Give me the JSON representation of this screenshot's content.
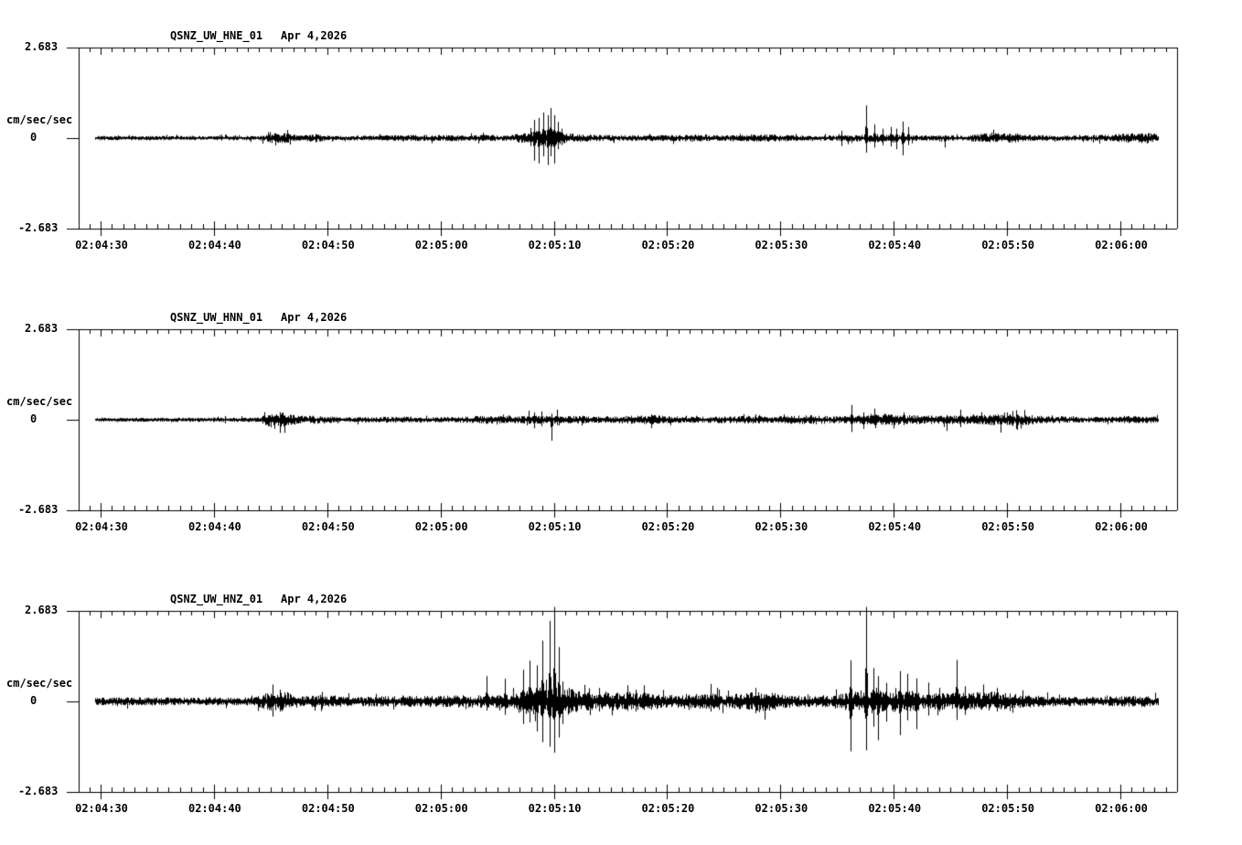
{
  "display": {
    "background": "#ffffff",
    "trace_color": "#000000",
    "text_color": "#000000"
  },
  "chart_data": [
    {
      "type": "line",
      "kind": "seismogram-waveform",
      "station": "QSNZ_UW_HNE_01",
      "date": "Apr 4,2026",
      "ylabel": "cm/sec/sec",
      "ylim": [
        -2.683,
        2.683
      ],
      "ytick_labels": [
        "2.683",
        "0",
        "-2.683"
      ],
      "xtick_seconds": [
        0,
        10,
        20,
        30,
        40,
        50,
        60,
        70,
        80,
        90
      ],
      "xtick_labels": [
        "02:04:30",
        "02:04:40",
        "02:04:50",
        "02:05:00",
        "02:05:10",
        "02:05:20",
        "02:05:30",
        "02:05:40",
        "02:05:50",
        "02:06:00"
      ],
      "grid": false,
      "trace_span_s": [
        -0.5,
        93.3
      ],
      "noise_envelope": [
        [
          -0.5,
          0.045
        ],
        [
          10,
          0.045
        ],
        [
          14,
          0.05
        ],
        [
          15,
          0.11
        ],
        [
          16.5,
          0.11
        ],
        [
          17.5,
          0.055
        ],
        [
          18.8,
          0.09
        ],
        [
          19.8,
          0.06
        ],
        [
          21,
          0.05
        ],
        [
          25,
          0.055
        ],
        [
          27,
          0.07
        ],
        [
          31,
          0.065
        ],
        [
          34,
          0.07
        ],
        [
          36,
          0.06
        ],
        [
          37.4,
          0.12
        ],
        [
          39.5,
          0.2
        ],
        [
          40.8,
          0.12
        ],
        [
          42,
          0.08
        ],
        [
          45,
          0.065
        ],
        [
          48,
          0.06
        ],
        [
          51,
          0.07
        ],
        [
          53,
          0.085
        ],
        [
          55,
          0.06
        ],
        [
          57,
          0.07
        ],
        [
          58.5,
          0.09
        ],
        [
          60,
          0.07
        ],
        [
          63,
          0.055
        ],
        [
          65,
          0.06
        ],
        [
          66.5,
          0.08
        ],
        [
          68,
          0.09
        ],
        [
          71,
          0.08
        ],
        [
          73,
          0.06
        ],
        [
          76,
          0.055
        ],
        [
          78,
          0.1
        ],
        [
          80,
          0.11
        ],
        [
          82,
          0.065
        ],
        [
          85,
          0.055
        ],
        [
          87,
          0.065
        ],
        [
          89,
          0.07
        ],
        [
          90.5,
          0.1
        ],
        [
          92.5,
          0.12
        ],
        [
          93.3,
          0.09
        ]
      ],
      "spikes": [
        [
          15.4,
          0.14,
          0.22
        ],
        [
          19.0,
          0.12,
          0.12
        ],
        [
          37.9,
          0.3,
          0.24
        ],
        [
          38.3,
          0.54,
          0.67
        ],
        [
          38.7,
          0.6,
          0.75
        ],
        [
          39.1,
          0.76,
          0.54
        ],
        [
          39.45,
          0.68,
          0.8
        ],
        [
          39.7,
          0.89,
          0.54
        ],
        [
          40.0,
          0.68,
          0.75
        ],
        [
          40.35,
          0.48,
          0.33
        ],
        [
          40.7,
          0.28,
          0.21
        ],
        [
          65.4,
          0.22,
          0.24
        ],
        [
          67.55,
          0.97,
          0.43
        ],
        [
          68.3,
          0.41,
          0.28
        ],
        [
          69.0,
          0.28,
          0.21
        ],
        [
          69.7,
          0.33,
          0.25
        ],
        [
          70.2,
          0.28,
          0.33
        ],
        [
          70.75,
          0.49,
          0.51
        ],
        [
          71.3,
          0.33,
          0.21
        ],
        [
          74.5,
          0.08,
          0.28
        ]
      ]
    },
    {
      "type": "line",
      "kind": "seismogram-waveform",
      "station": "QSNZ_UW_HNN_01",
      "date": "Apr 4,2026",
      "ylabel": "cm/sec/sec",
      "ylim": [
        -2.683,
        2.683
      ],
      "ytick_labels": [
        "2.683",
        "0",
        "-2.683"
      ],
      "xtick_seconds": [
        0,
        10,
        20,
        30,
        40,
        50,
        60,
        70,
        80,
        90
      ],
      "xtick_labels": [
        "02:04:30",
        "02:04:40",
        "02:04:50",
        "02:05:00",
        "02:05:10",
        "02:05:20",
        "02:05:30",
        "02:05:40",
        "02:05:50",
        "02:06:00"
      ],
      "grid": false,
      "trace_span_s": [
        -0.5,
        93.3
      ],
      "noise_envelope": [
        [
          -0.5,
          0.04
        ],
        [
          10,
          0.045
        ],
        [
          14,
          0.05
        ],
        [
          14.8,
          0.16
        ],
        [
          16.3,
          0.16
        ],
        [
          17.5,
          0.08
        ],
        [
          18.8,
          0.09
        ],
        [
          20,
          0.07
        ],
        [
          21.5,
          0.055
        ],
        [
          24,
          0.06
        ],
        [
          26.5,
          0.07
        ],
        [
          29,
          0.055
        ],
        [
          32,
          0.065
        ],
        [
          33.5,
          0.085
        ],
        [
          36,
          0.08
        ],
        [
          38,
          0.085
        ],
        [
          40,
          0.08
        ],
        [
          42.5,
          0.085
        ],
        [
          44,
          0.07
        ],
        [
          47.5,
          0.09
        ],
        [
          49,
          0.1
        ],
        [
          50.5,
          0.075
        ],
        [
          53,
          0.065
        ],
        [
          55.5,
          0.08
        ],
        [
          57.5,
          0.085
        ],
        [
          59,
          0.07
        ],
        [
          61.5,
          0.09
        ],
        [
          63,
          0.1
        ],
        [
          64.5,
          0.075
        ],
        [
          66,
          0.08
        ],
        [
          67.5,
          0.1
        ],
        [
          69.5,
          0.12
        ],
        [
          71.5,
          0.1
        ],
        [
          73,
          0.09
        ],
        [
          74.5,
          0.1
        ],
        [
          76.5,
          0.09
        ],
        [
          78,
          0.11
        ],
        [
          80,
          0.13
        ],
        [
          81.5,
          0.12
        ],
        [
          83,
          0.085
        ],
        [
          85,
          0.065
        ],
        [
          87,
          0.06
        ],
        [
          89,
          0.065
        ],
        [
          91,
          0.08
        ],
        [
          92.5,
          0.075
        ],
        [
          93.3,
          0.06
        ]
      ],
      "spikes": [
        [
          15.3,
          0.12,
          0.27
        ],
        [
          37.8,
          0.27,
          0.12
        ],
        [
          38.3,
          0.22,
          0.25
        ],
        [
          38.9,
          0.25,
          0.19
        ],
        [
          39.8,
          0.18,
          0.62
        ],
        [
          40.3,
          0.3,
          0.16
        ],
        [
          48.6,
          0.16,
          0.25
        ],
        [
          66.3,
          0.44,
          0.36
        ],
        [
          67.3,
          0.22,
          0.27
        ],
        [
          68.3,
          0.33,
          0.16
        ],
        [
          70.9,
          0.22,
          0.16
        ],
        [
          74.7,
          0.14,
          0.33
        ],
        [
          75.9,
          0.3,
          0.22
        ],
        [
          79.4,
          0.14,
          0.38
        ],
        [
          80.5,
          0.26,
          0.18
        ]
      ]
    },
    {
      "type": "line",
      "kind": "seismogram-waveform",
      "station": "QSNZ_UW_HNZ_01",
      "date": "Apr 4,2026",
      "ylabel": "cm/sec/sec",
      "ylim": [
        -2.683,
        2.683
      ],
      "ytick_labels": [
        "2.683",
        "0",
        "-2.683"
      ],
      "xtick_seconds": [
        0,
        10,
        20,
        30,
        40,
        50,
        60,
        70,
        80,
        90
      ],
      "xtick_labels": [
        "02:04:30",
        "02:04:40",
        "02:04:50",
        "02:05:00",
        "02:05:10",
        "02:05:20",
        "02:05:30",
        "02:05:40",
        "02:05:50",
        "02:06:00"
      ],
      "grid": false,
      "trace_span_s": [
        -0.5,
        93.3
      ],
      "noise_envelope": [
        [
          -0.5,
          0.08
        ],
        [
          3,
          0.09
        ],
        [
          6,
          0.08
        ],
        [
          10,
          0.085
        ],
        [
          13.5,
          0.09
        ],
        [
          14.8,
          0.2
        ],
        [
          16.3,
          0.21
        ],
        [
          17.8,
          0.11
        ],
        [
          19,
          0.14
        ],
        [
          20.5,
          0.13
        ],
        [
          22,
          0.1
        ],
        [
          24,
          0.11
        ],
        [
          26,
          0.12
        ],
        [
          28,
          0.115
        ],
        [
          30,
          0.12
        ],
        [
          32,
          0.13
        ],
        [
          33.5,
          0.14
        ],
        [
          35,
          0.15
        ],
        [
          36.5,
          0.16
        ],
        [
          37.5,
          0.28
        ],
        [
          39.5,
          0.36
        ],
        [
          41,
          0.3
        ],
        [
          42.5,
          0.2
        ],
        [
          44,
          0.17
        ],
        [
          45.5,
          0.2
        ],
        [
          47,
          0.21
        ],
        [
          48.5,
          0.18
        ],
        [
          50,
          0.15
        ],
        [
          52,
          0.16
        ],
        [
          54,
          0.17
        ],
        [
          55.5,
          0.14
        ],
        [
          57,
          0.2
        ],
        [
          58.5,
          0.23
        ],
        [
          60,
          0.15
        ],
        [
          62,
          0.12
        ],
        [
          64,
          0.12
        ],
        [
          66,
          0.2
        ],
        [
          67.5,
          0.26
        ],
        [
          69,
          0.24
        ],
        [
          71,
          0.22
        ],
        [
          73,
          0.18
        ],
        [
          75,
          0.18
        ],
        [
          77,
          0.19
        ],
        [
          78.5,
          0.21
        ],
        [
          80,
          0.18
        ],
        [
          82,
          0.13
        ],
        [
          84,
          0.11
        ],
        [
          86,
          0.1
        ],
        [
          88,
          0.1
        ],
        [
          90,
          0.11
        ],
        [
          92,
          0.12
        ],
        [
          93.3,
          0.1
        ]
      ],
      "spikes": [
        [
          15.2,
          0.5,
          0.45
        ],
        [
          15.8,
          0.35,
          0.3
        ],
        [
          19.5,
          0.28,
          0.22
        ],
        [
          34.1,
          0.75,
          0.27
        ],
        [
          35.7,
          0.67,
          0.4
        ],
        [
          37.3,
          0.94,
          0.67
        ],
        [
          37.85,
          1.21,
          0.62
        ],
        [
          38.5,
          1.07,
          0.89
        ],
        [
          39.0,
          1.8,
          1.21
        ],
        [
          39.6,
          2.39,
          1.34
        ],
        [
          40.0,
          2.8,
          1.52
        ],
        [
          40.4,
          1.61,
          1.07
        ],
        [
          40.8,
          0.59,
          0.67
        ],
        [
          41.3,
          0.4,
          0.35
        ],
        [
          44.0,
          0.4,
          0.3
        ],
        [
          46.5,
          0.48,
          0.28
        ],
        [
          47.2,
          0.35,
          0.3
        ],
        [
          53.8,
          0.52,
          0.3
        ],
        [
          54.6,
          0.35,
          0.25
        ],
        [
          57.8,
          0.4,
          0.35
        ],
        [
          66.2,
          1.22,
          1.48
        ],
        [
          67.55,
          2.8,
          1.45
        ],
        [
          68.2,
          0.99,
          0.75
        ],
        [
          68.65,
          0.75,
          1.15
        ],
        [
          69.3,
          0.55,
          0.6
        ],
        [
          70.55,
          0.9,
          1.0
        ],
        [
          71.2,
          0.82,
          0.56
        ],
        [
          72.0,
          0.68,
          0.82
        ],
        [
          73.05,
          0.56,
          0.42
        ],
        [
          74.0,
          0.4,
          0.3
        ],
        [
          75.55,
          1.23,
          0.55
        ],
        [
          76.3,
          0.45,
          0.4
        ],
        [
          79.1,
          0.4,
          0.3
        ]
      ]
    }
  ]
}
